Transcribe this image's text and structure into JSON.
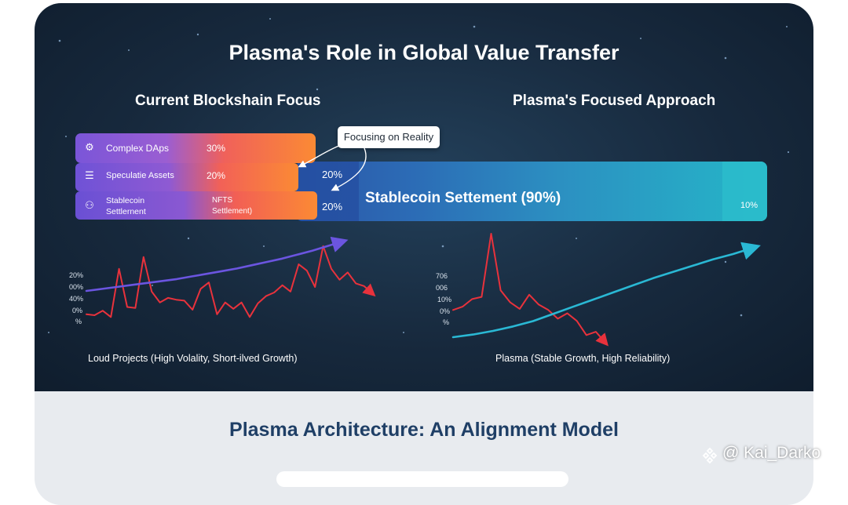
{
  "header": {
    "title": "Plasma's Role in Global Value Transfer",
    "left_heading": "Current Blockshain Focus",
    "right_heading": "Plasma's Focused Approach"
  },
  "bars": {
    "rows": [
      {
        "icon": "gear-icon",
        "label": "Complex DAps",
        "pct": "30%"
      },
      {
        "icon": "document-icon",
        "label": "Speculatie Assets",
        "pct": "20%"
      },
      {
        "icon": "nodes-icon",
        "label_line1": "Stablecoin",
        "label_line2": "Settlernent",
        "extra_line1": "NFTS",
        "extra_line2": "Settlement)"
      }
    ],
    "callout": "Focusing on Reality",
    "mid_pct_1": "20%",
    "mid_pct_2": "20%",
    "main_label": "Stablecoin Settement (90%)",
    "tail_pct": "10%",
    "colors": {
      "purple": "#7a55d8",
      "orange": "#fb8a34",
      "blue": "#2c6cb6",
      "teal": "#25b6c8"
    }
  },
  "chart_data": [
    {
      "type": "line",
      "title": "",
      "caption": "Loud Projects (High Volality, Short-ilved Growth)",
      "y_ticks": [
        "20%",
        "00%",
        "40%",
        "0%",
        "%"
      ],
      "series": [
        {
          "color": "#e8323c",
          "values": [
            20,
            19,
            24,
            17,
            70,
            28,
            27,
            83,
            45,
            33,
            38,
            36,
            35,
            25,
            48,
            55,
            20,
            33,
            26,
            33,
            17,
            32,
            40,
            44,
            52,
            45,
            75,
            68,
            50,
            95,
            70,
            58,
            66,
            54,
            51,
            43
          ]
        },
        {
          "color": "#6b55e0",
          "values": [
            25,
            28,
            31,
            34,
            37,
            40,
            43,
            47,
            51,
            55,
            59,
            64,
            69,
            74,
            80,
            86,
            93,
            100
          ]
        }
      ]
    },
    {
      "type": "line",
      "title": "",
      "caption": "Plasma (Stable Growth, High Reliability)",
      "y_ticks": [
        "706",
        "006",
        "10%",
        "0%",
        "%"
      ],
      "series": [
        {
          "color": "#e8323c",
          "values": [
            30,
            33,
            40,
            42,
            100,
            48,
            37,
            31,
            44,
            35,
            30,
            22,
            27,
            20,
            7,
            10,
            0
          ]
        },
        {
          "color": "#2ab8d4",
          "values": [
            0,
            3,
            7,
            12,
            18,
            26,
            34,
            42,
            50,
            58,
            66,
            73,
            80,
            87,
            93,
            100
          ]
        }
      ]
    }
  ],
  "footer": {
    "title": "Plasma Architecture: An Alignment Model"
  },
  "watermark": {
    "icon": "binance-icon",
    "text": "@ Kai_Darko"
  }
}
